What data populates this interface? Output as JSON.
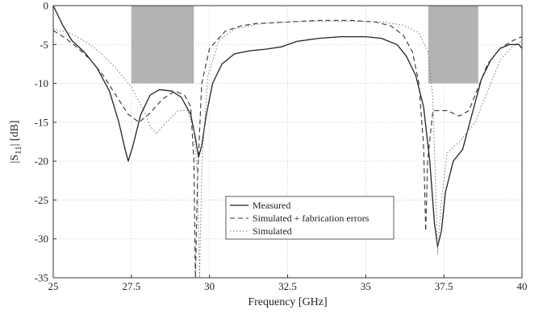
{
  "chart_data": {
    "type": "line",
    "xlabel": "Frequency [GHz]",
    "ylabel": "|S11| [dB]",
    "xlim": [
      25,
      40
    ],
    "ylim": [
      -35,
      0
    ],
    "xticks": [
      "25",
      "27.5",
      "30",
      "32.5",
      "35",
      "37.5",
      "40"
    ],
    "yticks": [
      "0",
      "-5",
      "-10",
      "-15",
      "-20",
      "-25",
      "-30",
      "-35"
    ],
    "grid": true,
    "legend_position": "bottom-center",
    "shaded_regions": [
      {
        "x": [
          27.5,
          29.5
        ],
        "y": [
          -10,
          0
        ]
      },
      {
        "x": [
          37.0,
          38.6
        ],
        "y": [
          -10,
          0
        ]
      }
    ],
    "series": [
      {
        "name": "Measured",
        "color": "#222222",
        "dash": "solid",
        "points": [
          [
            25,
            0
          ],
          [
            25.3,
            -2.5
          ],
          [
            25.6,
            -4.5
          ],
          [
            26,
            -6
          ],
          [
            26.4,
            -8
          ],
          [
            26.8,
            -11
          ],
          [
            27.1,
            -15
          ],
          [
            27.3,
            -18.5
          ],
          [
            27.4,
            -20
          ],
          [
            27.55,
            -18
          ],
          [
            27.8,
            -14
          ],
          [
            28.1,
            -11.5
          ],
          [
            28.4,
            -10.8
          ],
          [
            28.8,
            -11
          ],
          [
            29.1,
            -11.8
          ],
          [
            29.4,
            -14
          ],
          [
            29.55,
            -17
          ],
          [
            29.65,
            -19.5
          ],
          [
            29.75,
            -18
          ],
          [
            29.9,
            -14
          ],
          [
            30.1,
            -10
          ],
          [
            30.4,
            -7.5
          ],
          [
            30.8,
            -6.2
          ],
          [
            31.3,
            -5.8
          ],
          [
            31.8,
            -5.6
          ],
          [
            32.3,
            -5.3
          ],
          [
            32.8,
            -4.6
          ],
          [
            33.5,
            -4.2
          ],
          [
            34.2,
            -4.0
          ],
          [
            35,
            -4.0
          ],
          [
            35.5,
            -4.2
          ],
          [
            36,
            -5.0
          ],
          [
            36.3,
            -6.5
          ],
          [
            36.6,
            -9
          ],
          [
            36.85,
            -13
          ],
          [
            37.05,
            -20
          ],
          [
            37.2,
            -28
          ],
          [
            37.3,
            -31
          ],
          [
            37.42,
            -29
          ],
          [
            37.55,
            -24
          ],
          [
            37.8,
            -20
          ],
          [
            38.1,
            -18.5
          ],
          [
            38.4,
            -14
          ],
          [
            38.7,
            -9.5
          ],
          [
            39,
            -7
          ],
          [
            39.3,
            -5.5
          ],
          [
            39.6,
            -5
          ],
          [
            39.9,
            -5
          ],
          [
            40,
            -5.5
          ]
        ]
      },
      {
        "name": "Simulated + fabrication errors",
        "color": "#333333",
        "dash": "6,4",
        "points": [
          [
            25,
            -3.2
          ],
          [
            25.4,
            -4.2
          ],
          [
            25.8,
            -5.5
          ],
          [
            26.2,
            -7
          ],
          [
            26.6,
            -9
          ],
          [
            27,
            -11.5
          ],
          [
            27.4,
            -14
          ],
          [
            27.75,
            -15
          ],
          [
            28.1,
            -13.8
          ],
          [
            28.5,
            -12
          ],
          [
            28.9,
            -11
          ],
          [
            29.2,
            -11.5
          ],
          [
            29.4,
            -13
          ],
          [
            29.5,
            -20
          ],
          [
            29.55,
            -35
          ],
          [
            29.62,
            -22
          ],
          [
            29.75,
            -10
          ],
          [
            30,
            -5.5
          ],
          [
            30.5,
            -3.3
          ],
          [
            31,
            -2.6
          ],
          [
            31.5,
            -2.3
          ],
          [
            32.5,
            -2.1
          ],
          [
            33.5,
            -1.9
          ],
          [
            34.5,
            -1.9
          ],
          [
            35.3,
            -2.1
          ],
          [
            35.8,
            -2.6
          ],
          [
            36.2,
            -3.8
          ],
          [
            36.5,
            -6
          ],
          [
            36.7,
            -10
          ],
          [
            36.85,
            -18
          ],
          [
            36.92,
            -29
          ],
          [
            36.98,
            -20
          ],
          [
            37.15,
            -13.5
          ],
          [
            37.6,
            -13.5
          ],
          [
            38,
            -14.2
          ],
          [
            38.3,
            -13.5
          ],
          [
            38.6,
            -10.5
          ],
          [
            38.9,
            -7.5
          ],
          [
            39.3,
            -5.5
          ],
          [
            39.7,
            -4.5
          ],
          [
            40,
            -4
          ]
        ]
      },
      {
        "name": "Simulated",
        "color": "#777777",
        "dash": "1.5,2.5",
        "points": [
          [
            25,
            -3
          ],
          [
            25.5,
            -3.5
          ],
          [
            26,
            -4.5
          ],
          [
            26.5,
            -6
          ],
          [
            27,
            -8
          ],
          [
            27.5,
            -10.5
          ],
          [
            27.9,
            -13.5
          ],
          [
            28.1,
            -15.5
          ],
          [
            28.3,
            -16.5
          ],
          [
            28.5,
            -15.5
          ],
          [
            28.75,
            -14.5
          ],
          [
            29,
            -13.5
          ],
          [
            29.3,
            -13.5
          ],
          [
            29.5,
            -16
          ],
          [
            29.62,
            -22
          ],
          [
            29.68,
            -35
          ],
          [
            29.76,
            -20
          ],
          [
            29.95,
            -9
          ],
          [
            30.3,
            -4.5
          ],
          [
            30.8,
            -3
          ],
          [
            31.5,
            -2.4
          ],
          [
            32.5,
            -2.1
          ],
          [
            33.5,
            -2
          ],
          [
            34.5,
            -2
          ],
          [
            35.5,
            -2.1
          ],
          [
            36.2,
            -2.5
          ],
          [
            36.7,
            -3.5
          ],
          [
            37,
            -6
          ],
          [
            37.15,
            -12
          ],
          [
            37.3,
            -32
          ],
          [
            37.4,
            -26
          ],
          [
            37.6,
            -19
          ],
          [
            38,
            -17.5
          ],
          [
            38.5,
            -15
          ],
          [
            38.9,
            -11
          ],
          [
            39.3,
            -7
          ],
          [
            39.7,
            -5.2
          ],
          [
            40,
            -4.5
          ]
        ]
      }
    ]
  }
}
